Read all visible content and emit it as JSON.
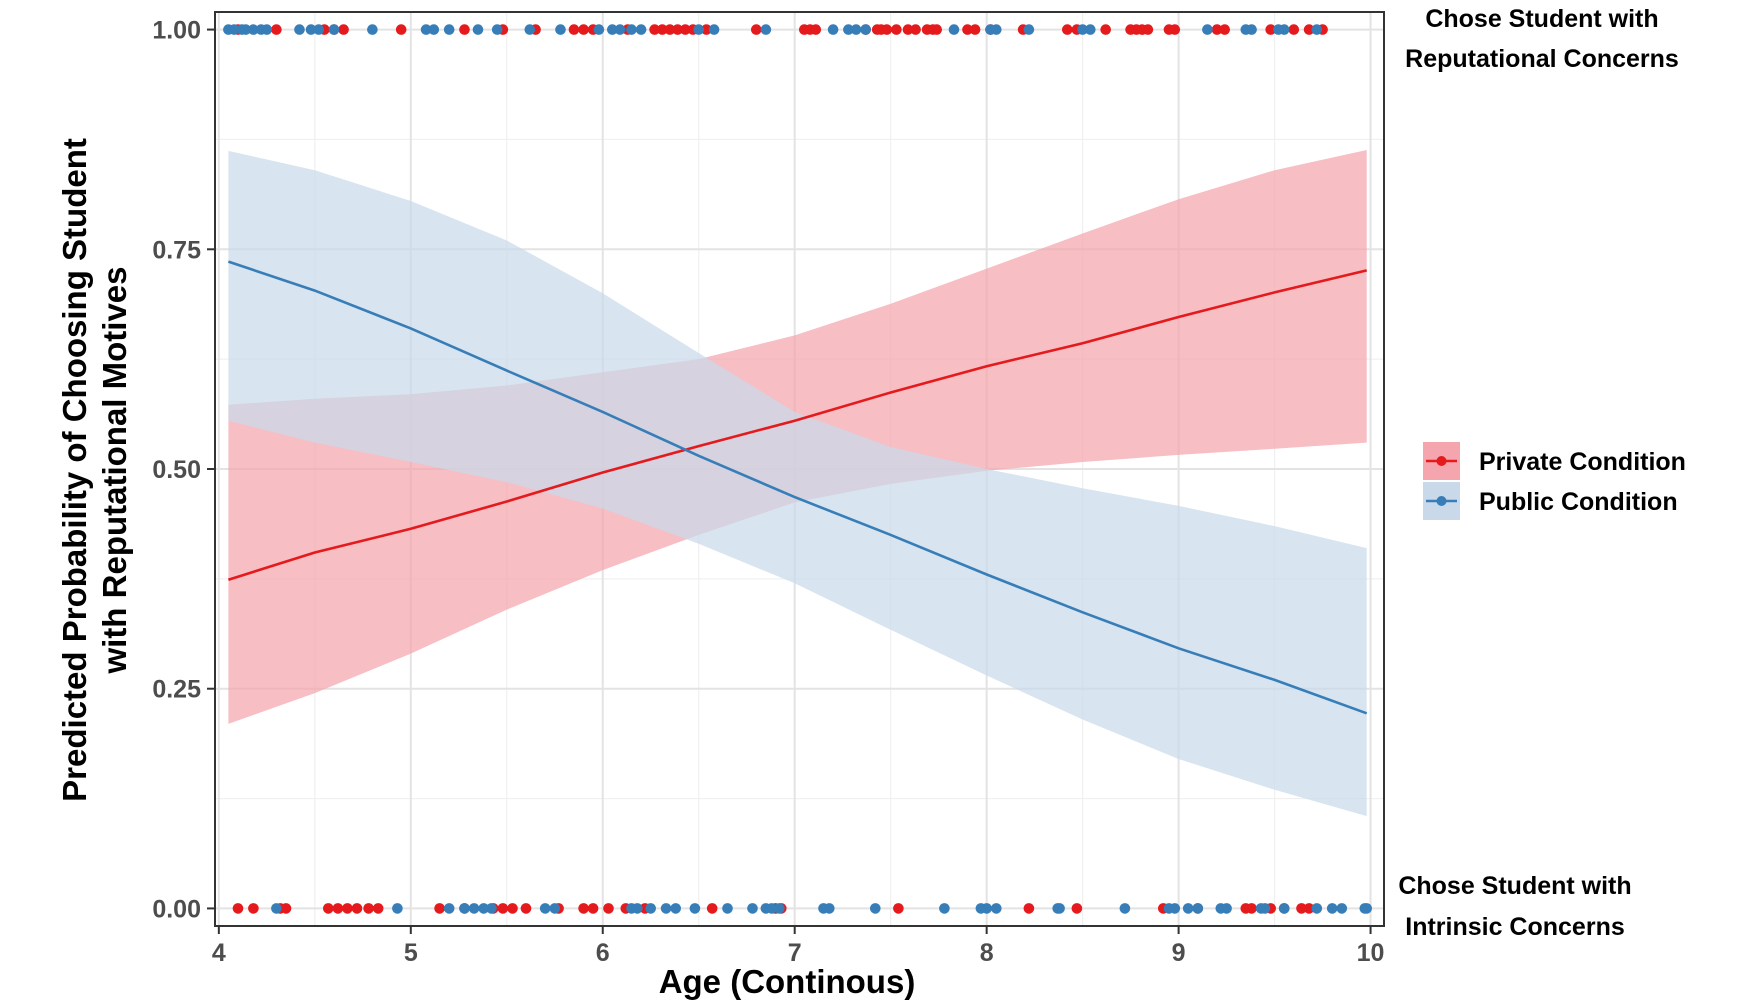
{
  "chart_data": {
    "type": "line",
    "xlabel": "Age (Continous)",
    "ylabel": "Predicted Probability of Choosing Student with Reputational Motives",
    "ylabel_lines": [
      "Predicted Probability of Choosing Student",
      "with Reputational Motives"
    ],
    "xlim": [
      3.98,
      10.07
    ],
    "ylim": [
      -0.02,
      1.02
    ],
    "x_ticks": [
      4,
      5,
      6,
      7,
      8,
      9,
      10
    ],
    "x_tick_labels": [
      "4",
      "5",
      "6",
      "7",
      "8",
      "9",
      "10"
    ],
    "y_ticks": [
      0,
      0.25,
      0.5,
      0.75,
      1.0
    ],
    "y_tick_labels": [
      "0.00",
      "0.25",
      "0.50",
      "0.75",
      "1.00"
    ],
    "grid": true,
    "legend_position": "right",
    "annotations": {
      "top": [
        "Chose Student with",
        "Reputational Concerns"
      ],
      "bottom": [
        "Chose Student with",
        "Intrinsic Concerns"
      ]
    },
    "series": [
      {
        "name": "Private Condition",
        "color": "#e41a1c",
        "ribbon_color": "#f4a5ad",
        "x": [
          4.05,
          4.5,
          5,
          5.5,
          6,
          6.5,
          7,
          7.5,
          8,
          8.5,
          9,
          9.5,
          9.98
        ],
        "fit": [
          0.374,
          0.405,
          0.432,
          0.463,
          0.496,
          0.526,
          0.555,
          0.587,
          0.617,
          0.643,
          0.673,
          0.701,
          0.726
        ],
        "lower": [
          0.21,
          0.245,
          0.29,
          0.34,
          0.385,
          0.425,
          0.462,
          0.483,
          0.498,
          0.508,
          0.516,
          0.523,
          0.53
        ],
        "upper": [
          0.573,
          0.58,
          0.585,
          0.595,
          0.61,
          0.625,
          0.652,
          0.688,
          0.728,
          0.768,
          0.807,
          0.84,
          0.863
        ],
        "points_y1": [
          4.1,
          4.3,
          4.55,
          4.6,
          4.65,
          4.95,
          5.28,
          5.48,
          5.65,
          5.85,
          5.9,
          5.95,
          6.13,
          6.27,
          6.31,
          6.35,
          6.39,
          6.43,
          6.47,
          6.54,
          6.8,
          7.05,
          7.08,
          7.11,
          7.37,
          7.43,
          7.45,
          7.48,
          7.53,
          7.59,
          7.63,
          7.69,
          7.72,
          7.74,
          7.9,
          7.94,
          8.02,
          8.19,
          8.42,
          8.47,
          8.62,
          8.75,
          8.78,
          8.81,
          8.84,
          8.95,
          8.98,
          9.2,
          9.24,
          9.48,
          9.6,
          9.68,
          9.75
        ],
        "points_y0": [
          4.1,
          4.18,
          4.32,
          4.35,
          4.57,
          4.62,
          4.67,
          4.72,
          4.78,
          4.83,
          5.15,
          5.28,
          5.43,
          5.48,
          5.53,
          5.6,
          5.77,
          5.9,
          5.95,
          6.03,
          6.12,
          6.22,
          6.57,
          6.9,
          6.93,
          7.54,
          8.22,
          8.47,
          8.92,
          9.1,
          9.35,
          9.38,
          9.48,
          9.55,
          9.64,
          9.68
        ]
      },
      {
        "name": "Public Condition",
        "color": "#377eb8",
        "ribbon_color": "#c9d9ea",
        "x": [
          4.05,
          4.5,
          5,
          5.5,
          6,
          6.5,
          7,
          7.5,
          8,
          8.5,
          9,
          9.5,
          9.98
        ],
        "fit": [
          0.736,
          0.703,
          0.66,
          0.612,
          0.565,
          0.515,
          0.468,
          0.425,
          0.38,
          0.337,
          0.296,
          0.26,
          0.222
        ],
        "lower": [
          0.555,
          0.53,
          0.508,
          0.485,
          0.455,
          0.415,
          0.37,
          0.317,
          0.265,
          0.215,
          0.17,
          0.135,
          0.105
        ],
        "upper": [
          0.862,
          0.84,
          0.805,
          0.76,
          0.7,
          0.632,
          0.565,
          0.525,
          0.5,
          0.478,
          0.458,
          0.435,
          0.41
        ],
        "points_y1": [
          4.05,
          4.08,
          4.12,
          4.14,
          4.18,
          4.22,
          4.25,
          4.42,
          4.48,
          4.52,
          4.6,
          4.8,
          5.08,
          5.12,
          5.2,
          5.35,
          5.45,
          5.62,
          5.78,
          5.98,
          6.05,
          6.09,
          6.15,
          6.2,
          6.5,
          6.58,
          6.85,
          7.2,
          7.28,
          7.32,
          7.37,
          7.83,
          8.02,
          8.05,
          8.22,
          8.5,
          8.54,
          9.15,
          9.35,
          9.38,
          9.52,
          9.55,
          9.72
        ],
        "points_y0": [
          4.3,
          4.93,
          5.2,
          5.28,
          5.33,
          5.38,
          5.42,
          5.7,
          5.75,
          6.15,
          6.18,
          6.25,
          6.33,
          6.38,
          6.48,
          6.65,
          6.78,
          6.85,
          6.88,
          6.92,
          7.15,
          7.18,
          7.42,
          7.78,
          7.97,
          8.0,
          8.05,
          8.37,
          8.38,
          8.72,
          8.95,
          8.98,
          9.05,
          9.1,
          9.22,
          9.25,
          9.43,
          9.45,
          9.55,
          9.72,
          9.8,
          9.85,
          9.97,
          9.98
        ]
      }
    ]
  }
}
